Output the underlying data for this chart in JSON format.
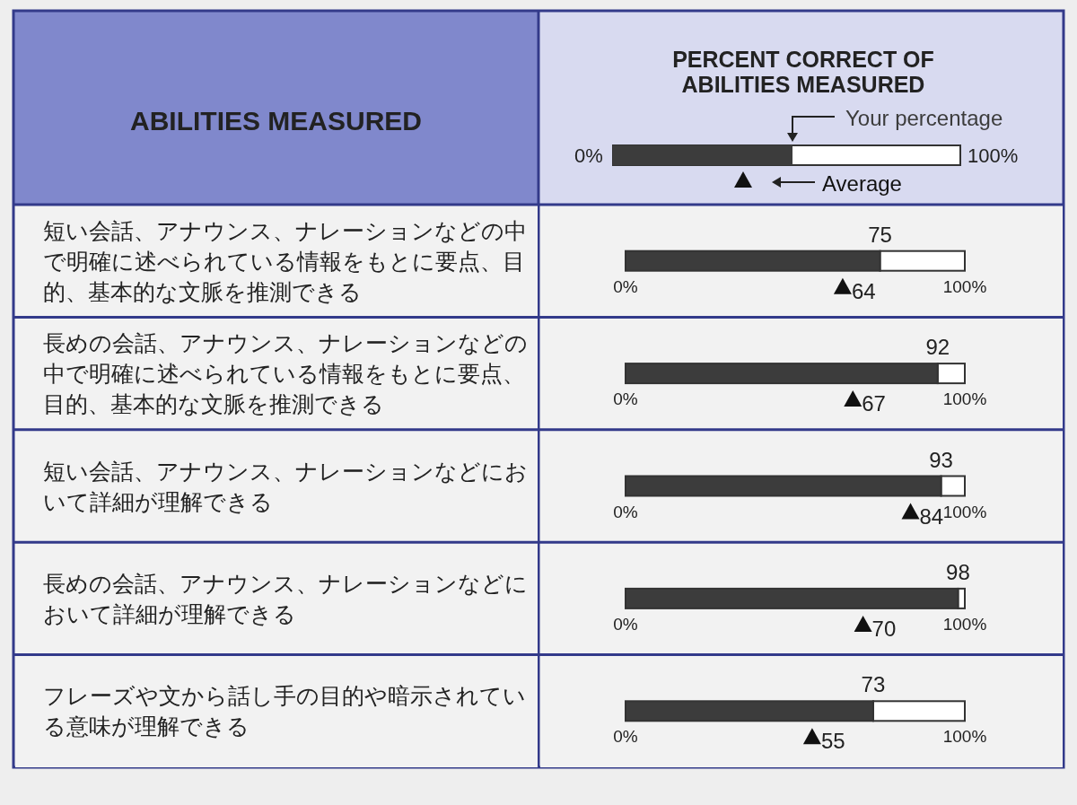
{
  "chart_data": {
    "type": "bar",
    "orientation": "horizontal",
    "title": "PERCENT CORRECT OF ABILITIES MEASURED",
    "ylabel": "ABILITIES MEASURED",
    "categories": [
      "短い会話、アナウンス、ナレーションなどの中で明確に述べられている情報をもとに要点、目的、基本的な文脈を推測できる",
      "長めの会話、アナウンス、ナレーションなどの中で明確に述べられている情報をもとに要点、目的、基本的な文脈を推測できる",
      "短い会話、アナウンス、ナレーションなどにおいて詳細が理解できる",
      "長めの会話、アナウンス、ナレーションなどにおいて詳細が理解できる",
      "フレーズや文から話し手の目的や暗示されている意味が理解できる"
    ],
    "series": [
      {
        "name": "Your percentage",
        "color": "#3c3c3c",
        "values": [
          75,
          92,
          93,
          98,
          73
        ]
      },
      {
        "name": "Average",
        "type": "scatter",
        "marker": "triangle",
        "color": "#111111",
        "values": [
          64,
          67,
          84,
          70,
          55
        ]
      }
    ],
    "xlim": [
      0,
      100
    ],
    "xticks": [
      {
        "value": 0,
        "label": "0%"
      },
      {
        "value": 100,
        "label": "100%"
      }
    ],
    "data_labels": true,
    "legend": "top"
  }
}
